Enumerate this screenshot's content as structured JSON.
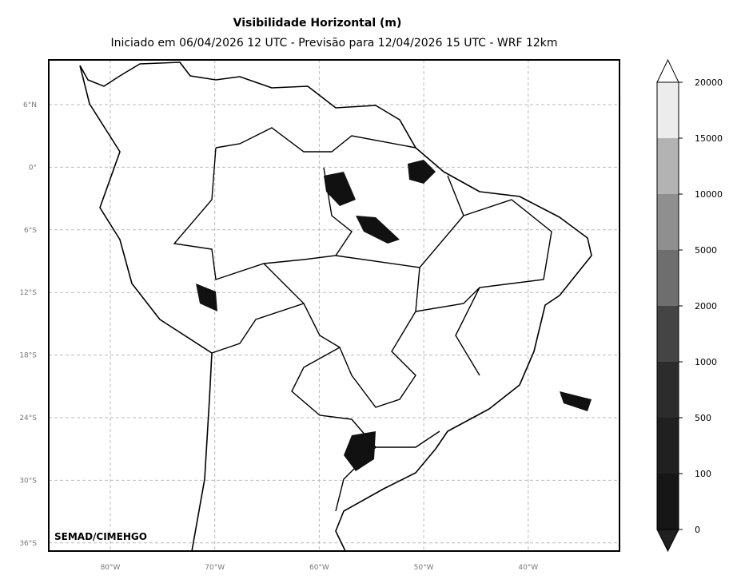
{
  "title": "Visibilidade Horizontal (m)",
  "subtitle": "Iniciado em 06/04/2026 12 UTC - Previsão para 12/04/2026 15 UTC - WRF 12km",
  "map": {
    "lat_labels": [
      "6°N",
      "0°",
      "6°S",
      "12°S",
      "18°S",
      "24°S",
      "30°S",
      "36°S"
    ],
    "lon_labels": [
      "80°W",
      "70°W",
      "60°W",
      "50°W",
      "40°W"
    ],
    "credit": "SEMAD/CIMEHGO"
  },
  "colorbar": {
    "levels": [
      0,
      100,
      500,
      1000,
      2000,
      5000,
      10000,
      15000,
      20000
    ],
    "colors": [
      "#161616",
      "#202020",
      "#2c2c2c",
      "#444444",
      "#6e6e6e",
      "#8f8f8f",
      "#b3b3b3",
      "#ececec"
    ]
  }
}
